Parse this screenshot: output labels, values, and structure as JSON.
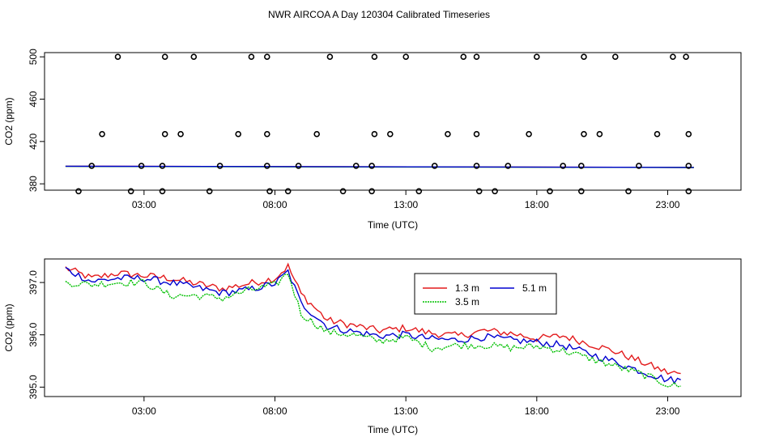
{
  "page_title": "NWR AIRCOA A  Day 120304  Calibrated Timeseries",
  "colors": {
    "red": "#e31a1c",
    "green": "#00c000",
    "blue": "#0000d0",
    "marker": "#000000"
  },
  "chart_data": [
    {
      "type": "scatter",
      "title": "",
      "xlabel": "Time (UTC)",
      "ylabel": "CO2 (ppm)",
      "xlim": [
        -0.8,
        25.8
      ],
      "ylim": [
        374,
        504
      ],
      "xticks": [
        3,
        8,
        13,
        18,
        23
      ],
      "xtick_labels": [
        "03:00",
        "08:00",
        "13:00",
        "18:00",
        "23:00"
      ],
      "yticks": [
        380,
        420,
        460,
        500
      ],
      "ytick_labels": [
        "380",
        "420",
        "460",
        "500"
      ],
      "markers": [
        [
          2.0,
          500
        ],
        [
          3.8,
          500
        ],
        [
          4.9,
          500
        ],
        [
          7.1,
          500
        ],
        [
          7.7,
          500
        ],
        [
          10.1,
          500
        ],
        [
          11.8,
          500
        ],
        [
          13.0,
          500
        ],
        [
          15.2,
          500
        ],
        [
          15.7,
          500
        ],
        [
          18.0,
          500
        ],
        [
          19.8,
          500
        ],
        [
          21.0,
          500
        ],
        [
          23.2,
          500
        ],
        [
          23.7,
          500
        ],
        [
          1.4,
          427
        ],
        [
          3.8,
          427
        ],
        [
          4.4,
          427
        ],
        [
          6.6,
          427
        ],
        [
          7.7,
          427
        ],
        [
          9.6,
          427
        ],
        [
          11.8,
          427
        ],
        [
          12.4,
          427
        ],
        [
          14.6,
          427
        ],
        [
          15.7,
          427
        ],
        [
          17.7,
          427
        ],
        [
          19.8,
          427
        ],
        [
          20.4,
          427
        ],
        [
          22.6,
          427
        ],
        [
          23.8,
          427
        ],
        [
          1.0,
          397
        ],
        [
          2.9,
          397
        ],
        [
          3.7,
          397
        ],
        [
          5.9,
          397
        ],
        [
          7.7,
          397
        ],
        [
          8.9,
          397
        ],
        [
          11.1,
          397
        ],
        [
          11.7,
          397
        ],
        [
          14.1,
          397
        ],
        [
          15.7,
          397
        ],
        [
          16.9,
          397
        ],
        [
          19.0,
          397
        ],
        [
          19.7,
          397
        ],
        [
          21.9,
          397
        ],
        [
          23.8,
          397
        ],
        [
          0.5,
          373
        ],
        [
          2.5,
          373
        ],
        [
          3.7,
          373
        ],
        [
          5.5,
          373
        ],
        [
          7.8,
          373
        ],
        [
          8.5,
          373
        ],
        [
          10.6,
          373
        ],
        [
          11.7,
          373
        ],
        [
          13.5,
          373
        ],
        [
          15.8,
          373
        ],
        [
          16.4,
          373
        ],
        [
          18.5,
          373
        ],
        [
          19.7,
          373
        ],
        [
          21.5,
          373
        ],
        [
          23.8,
          373
        ]
      ],
      "series": [
        {
          "name": "1.3 m",
          "color": "#e31a1c",
          "values": [
            [
              0,
              396.6
            ],
            [
              24,
              395.5
            ]
          ]
        },
        {
          "name": "3.5 m",
          "color": "#00c000",
          "values": [
            [
              0,
              396.5
            ],
            [
              24,
              395.4
            ]
          ]
        },
        {
          "name": "5.1 m",
          "color": "#0000d0",
          "values": [
            [
              0,
              396.6
            ],
            [
              24,
              395.5
            ]
          ]
        }
      ]
    },
    {
      "type": "line",
      "title": "",
      "xlabel": "Time (UTC)",
      "ylabel": "CO2 (ppm)",
      "xlim": [
        -0.8,
        25.8
      ],
      "ylim": [
        394.82,
        397.45
      ],
      "xticks": [
        3,
        8,
        13,
        18,
        23
      ],
      "xtick_labels": [
        "03:00",
        "08:00",
        "13:00",
        "18:00",
        "23:00"
      ],
      "yticks": [
        395.0,
        396.0,
        397.0
      ],
      "ytick_labels": [
        "395.0",
        "396.0",
        "397.0"
      ],
      "legend": {
        "position": "top-center",
        "entries": [
          "1.3 m",
          "5.1 m",
          "3.5 m"
        ]
      },
      "series": [
        {
          "name": "1.3 m",
          "color": "#e31a1c",
          "x": [
            0,
            1,
            2,
            3,
            4,
            5,
            6,
            7,
            8,
            8.5,
            9,
            10,
            11,
            12,
            13,
            14,
            15,
            16,
            17,
            18,
            19,
            20,
            21,
            22,
            23,
            23.5
          ],
          "values": [
            397.28,
            397.08,
            397.18,
            397.13,
            397.08,
            396.98,
            396.88,
            396.98,
            397.08,
            397.31,
            396.78,
            396.28,
            396.18,
            396.08,
            396.13,
            396.03,
            395.98,
            396.08,
            396.03,
            395.93,
            395.98,
            395.83,
            395.68,
            395.48,
            395.28,
            395.26
          ]
        },
        {
          "name": "5.1 m",
          "color": "#0000d0",
          "x": [
            0,
            1,
            2,
            3,
            4,
            5,
            6,
            7,
            8,
            8.5,
            9,
            10,
            11,
            12,
            13,
            14,
            15,
            16,
            17,
            18,
            19,
            20,
            21,
            22,
            23,
            23.5
          ],
          "values": [
            397.26,
            397.02,
            397.08,
            397.08,
            397.0,
            396.9,
            396.8,
            396.86,
            396.98,
            397.21,
            396.6,
            396.16,
            396.06,
            395.98,
            396.0,
            395.92,
            395.9,
            395.96,
            395.9,
            395.86,
            395.8,
            395.64,
            395.48,
            395.3,
            395.14,
            395.14
          ]
        },
        {
          "name": "3.5 m",
          "color": "#00c000",
          "x": [
            0,
            1,
            2,
            3,
            4,
            5,
            6,
            7,
            8,
            8.5,
            9,
            10,
            11,
            12,
            13,
            14,
            15,
            16,
            17,
            18,
            19,
            20,
            21,
            22,
            23,
            23.5
          ],
          "values": [
            397.0,
            396.96,
            397.0,
            397.0,
            396.75,
            396.75,
            396.7,
            396.85,
            396.95,
            397.18,
            396.4,
            396.05,
            396.0,
            395.88,
            395.95,
            395.75,
            395.8,
            395.8,
            395.75,
            395.78,
            395.7,
            395.55,
            395.4,
            395.25,
            395.05,
            395.02
          ]
        }
      ]
    }
  ]
}
